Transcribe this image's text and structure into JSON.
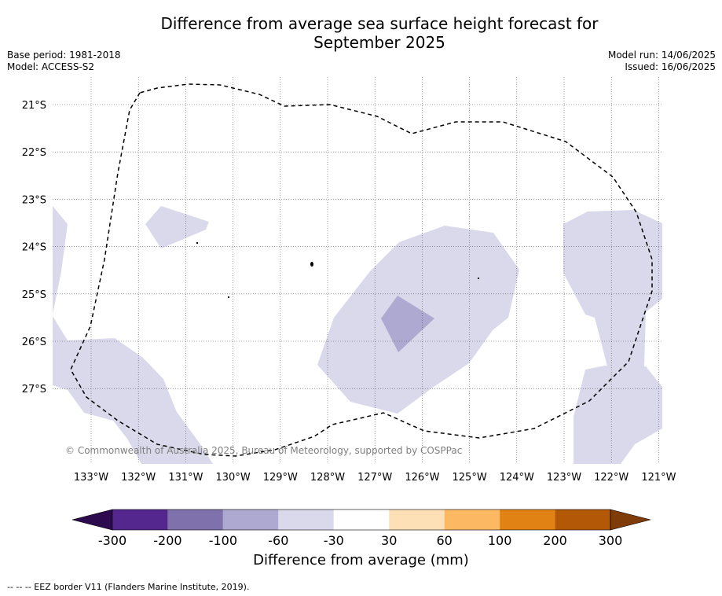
{
  "title_line1": "Difference from average sea surface height forecast for",
  "title_line2": "September 2025",
  "base_period": "Base period: 1981-2018",
  "model": "Model: ACCESS-S2",
  "model_run": "Model run: 14/06/2025",
  "issued": "Issued: 16/06/2025",
  "copyright": "© Commonwealth of Australia 2025, Bureau of Meteorology, supported by COSPPac",
  "lon_labels": [
    "133°W",
    "132°W",
    "131°W",
    "130°W",
    "129°W",
    "128°W",
    "127°W",
    "126°W",
    "125°W",
    "124°W",
    "123°W",
    "122°W",
    "121°W"
  ],
  "lat_labels": [
    "21°S",
    "22°S",
    "23°S",
    "24°S",
    "25°S",
    "26°S",
    "27°S"
  ],
  "colorbar": {
    "ticks": [
      "-300",
      "-200",
      "-100",
      "-60",
      "-30",
      "30",
      "60",
      "100",
      "200",
      "300"
    ],
    "colors": [
      "#2d0a4d",
      "#54278f",
      "#7e71ac",
      "#aea9d1",
      "#d9d9eb",
      "#ffffff",
      "#fee0b6",
      "#fdb863",
      "#e08214",
      "#b35806",
      "#7f3b08"
    ],
    "label": "Difference from average (mm)"
  },
  "map_fill_colors": {
    "light": "#d9d9eb",
    "medium": "#aea9d1"
  },
  "footnote": "--  --  -- EEZ border V11 (Flanders Marine Institute, 2019)."
}
